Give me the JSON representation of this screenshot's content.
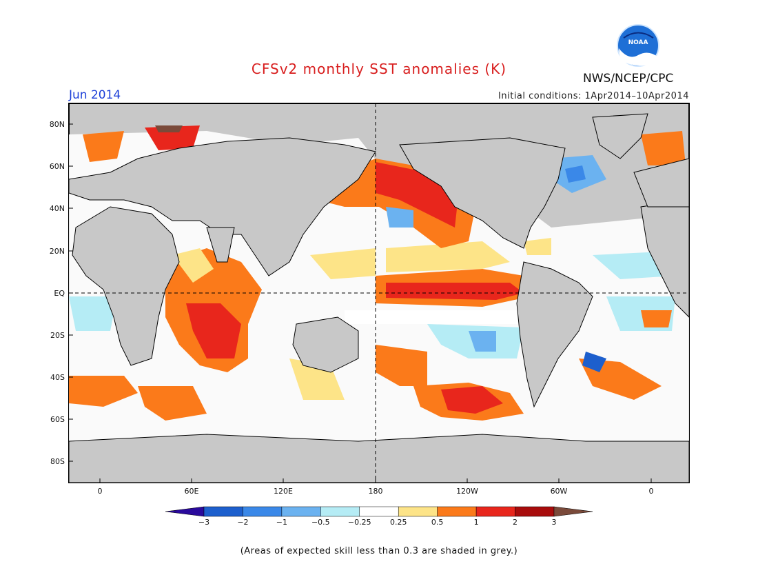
{
  "title": "CFSv2 monthly SST anomalies (K)",
  "month": "Jun 2014",
  "initial_conditions": "Initial conditions: 1Apr2014–10Apr2014",
  "agency": "NWS/NCEP/CPC",
  "logo_text": "NOAA",
  "footnote": "(Areas of expected skill less than 0.3 are shaded in grey.)",
  "axes": {
    "lat_labels": [
      "80N",
      "60N",
      "40N",
      "20N",
      "EQ",
      "20S",
      "40S",
      "60S",
      "80S"
    ],
    "lon_labels": [
      "0",
      "60E",
      "120E",
      "180",
      "120W",
      "60W",
      "0"
    ]
  },
  "colorbar": {
    "tick_labels": [
      "−3",
      "−2",
      "−1",
      "−0.5",
      "−0.25",
      "0.25",
      "0.5",
      "1",
      "2",
      "3"
    ],
    "colors": [
      "#2a0a9c",
      "#1d5fcd",
      "#3a88e8",
      "#6bb2f0",
      "#b5ecf5",
      "#ffffff",
      "#fde488",
      "#fb7a1a",
      "#e8261c",
      "#a80c0c",
      "#7a4a3a"
    ]
  },
  "colors": {
    "land": "#c8c8c8",
    "skill_grey": "#c8c8c8",
    "title_red": "#d81e1e",
    "month_blue": "#1c3fd8"
  }
}
